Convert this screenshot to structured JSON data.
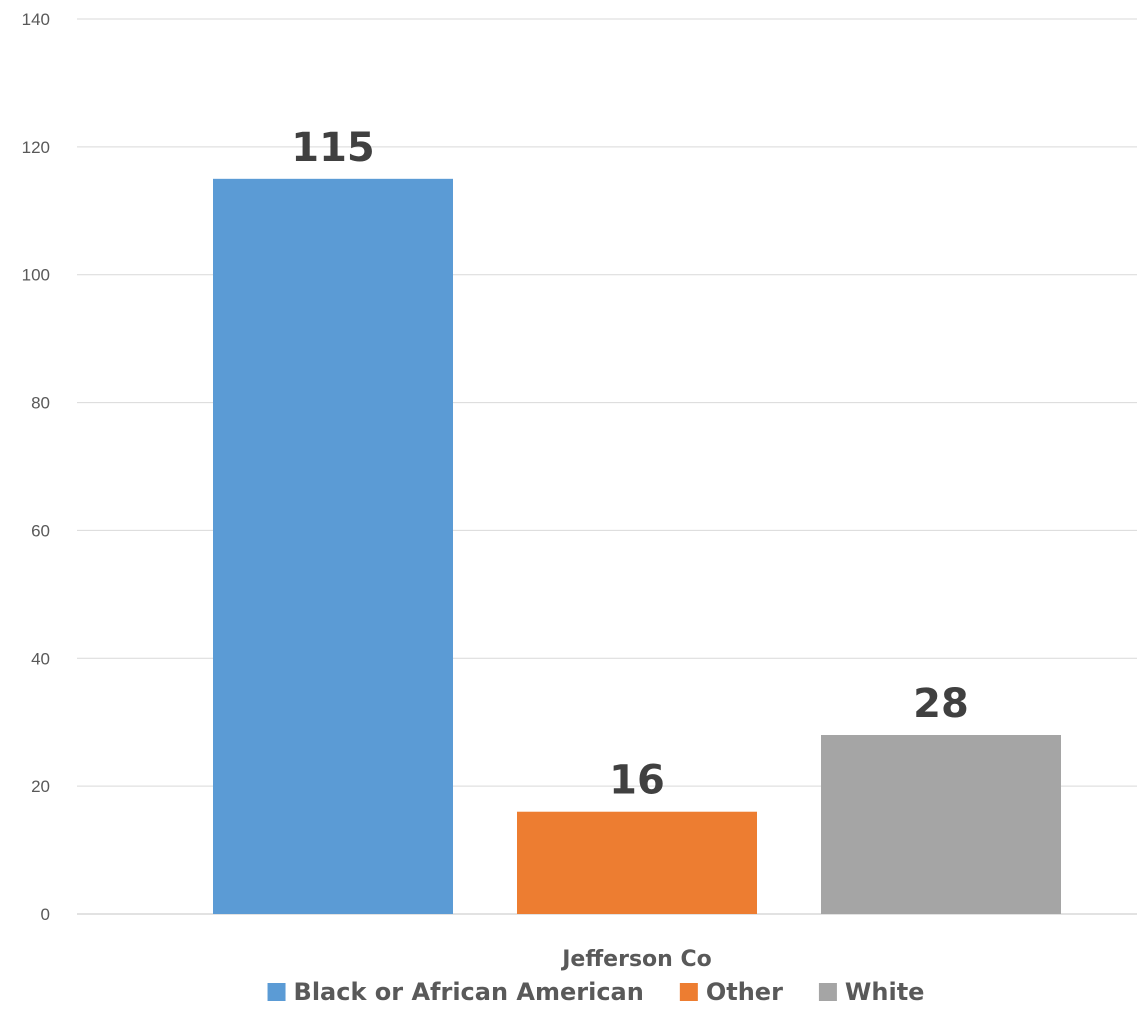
{
  "chart_data": {
    "type": "bar",
    "categories": [
      "Jefferson Co"
    ],
    "series": [
      {
        "name": "Black or African American",
        "values": [
          115
        ],
        "color": "#5b9bd5"
      },
      {
        "name": "Other",
        "values": [
          16
        ],
        "color": "#ed7d31"
      },
      {
        "name": "White",
        "values": [
          28
        ],
        "color": "#a5a5a5"
      }
    ],
    "ylim": [
      0,
      140
    ],
    "yticks": [
      0,
      20,
      40,
      60,
      80,
      100,
      120,
      140
    ],
    "grid": true,
    "legend": "bottom",
    "data_labels": true,
    "title": "",
    "xlabel": "",
    "ylabel": ""
  }
}
